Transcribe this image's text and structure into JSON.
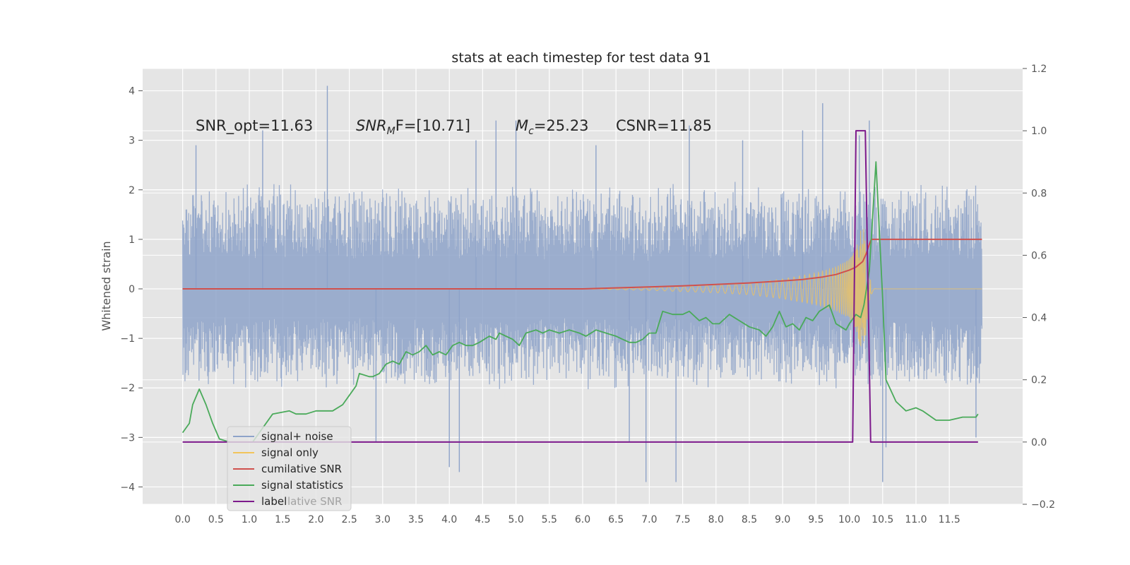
{
  "chart_data": {
    "type": "line",
    "title": "stats at each timestep for test data 91",
    "ylabel": "Whitened strain",
    "xlabel": "",
    "xlim": [
      -0.6,
      12.6
    ],
    "ylim": [
      -4.35,
      4.45
    ],
    "y2lim": [
      -0.2,
      1.2
    ],
    "grid": true,
    "legend_position": "lower-left",
    "x_ticks": [
      "0.0",
      "0.5",
      "1.0",
      "1.5",
      "2.0",
      "2.5",
      "3.0",
      "3.5",
      "4.0",
      "4.5",
      "5.0",
      "5.5",
      "6.0",
      "6.5",
      "7.0",
      "7.5",
      "8.0",
      "8.5",
      "9.0",
      "9.5",
      "10.0",
      "10.5",
      "11.0",
      "11.5"
    ],
    "y_ticks": [
      "4",
      "3",
      "2",
      "1",
      "0",
      "−1",
      "−2",
      "−3",
      "−4"
    ],
    "y2_ticks": [
      "1.2",
      "1.0",
      "0.8",
      "0.6",
      "0.4",
      "0.2",
      "0.0",
      "−0.2"
    ],
    "annotations": {
      "snr_opt": "SNR_opt=11.63",
      "snr_mf_base": "SNR",
      "snr_mf_sub": "M",
      "snr_mf_rest": "F=[10.71]",
      "mc_base": "M",
      "mc_sub": "c",
      "mc_rest": "=25.23",
      "csnr": "CSNR=11.85"
    },
    "legend": [
      {
        "label": "signal+ noise",
        "color": "#8ea3c9"
      },
      {
        "label": "signal only",
        "color": "#f2c45b"
      },
      {
        "label": "cumilative SNR",
        "color": "#d0514d"
      },
      {
        "label": "signal statistics",
        "color": "#4aaa5a"
      },
      {
        "label": "label",
        "color": "#7d1a8c"
      }
    ],
    "legend_ghost_text": "lative SNR",
    "series": [
      {
        "name": "signal+ noise",
        "axis": "left",
        "x_range": [
          0.0,
          11.99
        ],
        "envelope_typical": [
          -1.8,
          1.9
        ],
        "peaks": [
          {
            "x": 0.2,
            "y": 2.9
          },
          {
            "x": 1.2,
            "y": 3.2
          },
          {
            "x": 2.17,
            "y": 4.1
          },
          {
            "x": 4.4,
            "y": 3.0
          },
          {
            "x": 4.7,
            "y": 3.4
          },
          {
            "x": 5.0,
            "y": 3.4
          },
          {
            "x": 6.2,
            "y": 2.9
          },
          {
            "x": 7.6,
            "y": 3.3
          },
          {
            "x": 8.4,
            "y": 3.0
          },
          {
            "x": 9.3,
            "y": 3.2
          },
          {
            "x": 9.6,
            "y": 3.75
          },
          {
            "x": 10.3,
            "y": 3.4
          },
          {
            "x": 10.15,
            "y": 3.1
          }
        ],
        "troughs": [
          {
            "x": 2.9,
            "y": -3.1
          },
          {
            "x": 4.0,
            "y": -3.6
          },
          {
            "x": 4.15,
            "y": -3.7
          },
          {
            "x": 6.7,
            "y": -3.1
          },
          {
            "x": 6.95,
            "y": -3.9
          },
          {
            "x": 7.4,
            "y": -3.9
          },
          {
            "x": 10.5,
            "y": -3.9
          },
          {
            "x": 10.55,
            "y": -3.2
          },
          {
            "x": 11.9,
            "y": -3.0
          }
        ]
      },
      {
        "name": "signal only",
        "axis": "left",
        "x": [
          6.0,
          7.0,
          8.0,
          8.5,
          9.0,
          9.5,
          9.8,
          10.0,
          10.1,
          10.15,
          10.2,
          10.25,
          10.3,
          10.35,
          10.4,
          11.99
        ],
        "amplitude": [
          0.0,
          0.03,
          0.08,
          0.12,
          0.2,
          0.32,
          0.45,
          0.6,
          0.8,
          1.1,
          1.4,
          0.9,
          0.25,
          0.05,
          0.0,
          0.0
        ]
      },
      {
        "name": "cumilative SNR",
        "axis": "left",
        "x": [
          0.0,
          5.0,
          6.0,
          6.5,
          7.0,
          7.5,
          8.0,
          8.5,
          9.0,
          9.3,
          9.6,
          9.8,
          10.0,
          10.1,
          10.2,
          10.25,
          10.3,
          10.33,
          11.99
        ],
        "y": [
          0.0,
          0.0,
          0.0,
          0.02,
          0.04,
          0.06,
          0.09,
          0.12,
          0.16,
          0.19,
          0.24,
          0.29,
          0.38,
          0.44,
          0.55,
          0.7,
          0.9,
          1.0,
          1.0
        ]
      },
      {
        "name": "signal statistics",
        "axis": "right",
        "x": [
          0.0,
          0.1,
          0.15,
          0.25,
          0.35,
          0.45,
          0.55,
          0.7,
          0.85,
          1.0,
          1.05,
          1.15,
          1.35,
          1.6,
          1.7,
          1.85,
          2.0,
          2.1,
          2.25,
          2.4,
          2.5,
          2.6,
          2.65,
          2.8,
          2.85,
          2.95,
          3.05,
          3.15,
          3.25,
          3.35,
          3.45,
          3.55,
          3.65,
          3.75,
          3.85,
          3.95,
          4.05,
          4.15,
          4.25,
          4.35,
          4.45,
          4.6,
          4.7,
          4.75,
          4.85,
          4.95,
          5.05,
          5.15,
          5.3,
          5.4,
          5.5,
          5.65,
          5.8,
          5.95,
          6.05,
          6.2,
          6.35,
          6.5,
          6.6,
          6.7,
          6.8,
          6.9,
          7.0,
          7.1,
          7.2,
          7.35,
          7.5,
          7.6,
          7.75,
          7.85,
          7.95,
          8.05,
          8.2,
          8.35,
          8.5,
          8.65,
          8.75,
          8.85,
          8.95,
          9.05,
          9.15,
          9.25,
          9.35,
          9.45,
          9.55,
          9.7,
          9.8,
          9.95,
          10.0,
          10.1,
          10.17,
          10.22,
          10.3,
          10.4,
          10.5,
          10.55,
          10.7,
          10.85,
          11.0,
          11.1,
          11.3,
          11.5,
          11.7,
          11.9,
          11.93
        ],
        "y": [
          0.03,
          0.06,
          0.12,
          0.17,
          0.12,
          0.06,
          0.01,
          0.0,
          0.0,
          0.0,
          0.0,
          0.03,
          0.09,
          0.1,
          0.09,
          0.09,
          0.1,
          0.1,
          0.1,
          0.12,
          0.15,
          0.18,
          0.22,
          0.21,
          0.21,
          0.22,
          0.25,
          0.26,
          0.25,
          0.29,
          0.28,
          0.29,
          0.31,
          0.28,
          0.29,
          0.28,
          0.31,
          0.32,
          0.31,
          0.31,
          0.32,
          0.34,
          0.33,
          0.35,
          0.34,
          0.33,
          0.31,
          0.35,
          0.36,
          0.35,
          0.36,
          0.35,
          0.36,
          0.35,
          0.34,
          0.36,
          0.35,
          0.34,
          0.33,
          0.32,
          0.32,
          0.33,
          0.35,
          0.35,
          0.42,
          0.41,
          0.41,
          0.42,
          0.39,
          0.4,
          0.38,
          0.38,
          0.41,
          0.39,
          0.37,
          0.36,
          0.34,
          0.37,
          0.42,
          0.37,
          0.38,
          0.36,
          0.4,
          0.39,
          0.42,
          0.44,
          0.38,
          0.36,
          0.38,
          0.41,
          0.4,
          0.44,
          0.55,
          0.9,
          0.46,
          0.2,
          0.13,
          0.1,
          0.11,
          0.1,
          0.07,
          0.07,
          0.08,
          0.08,
          0.09
        ],
        "x_smoothing_note": ""
      },
      {
        "name": "label",
        "axis": "right",
        "x": [
          0.0,
          10.05,
          10.1,
          10.24,
          10.32,
          11.93
        ],
        "y": [
          0.0,
          0.0,
          1.0,
          1.0,
          0.0,
          0.0
        ]
      }
    ]
  }
}
